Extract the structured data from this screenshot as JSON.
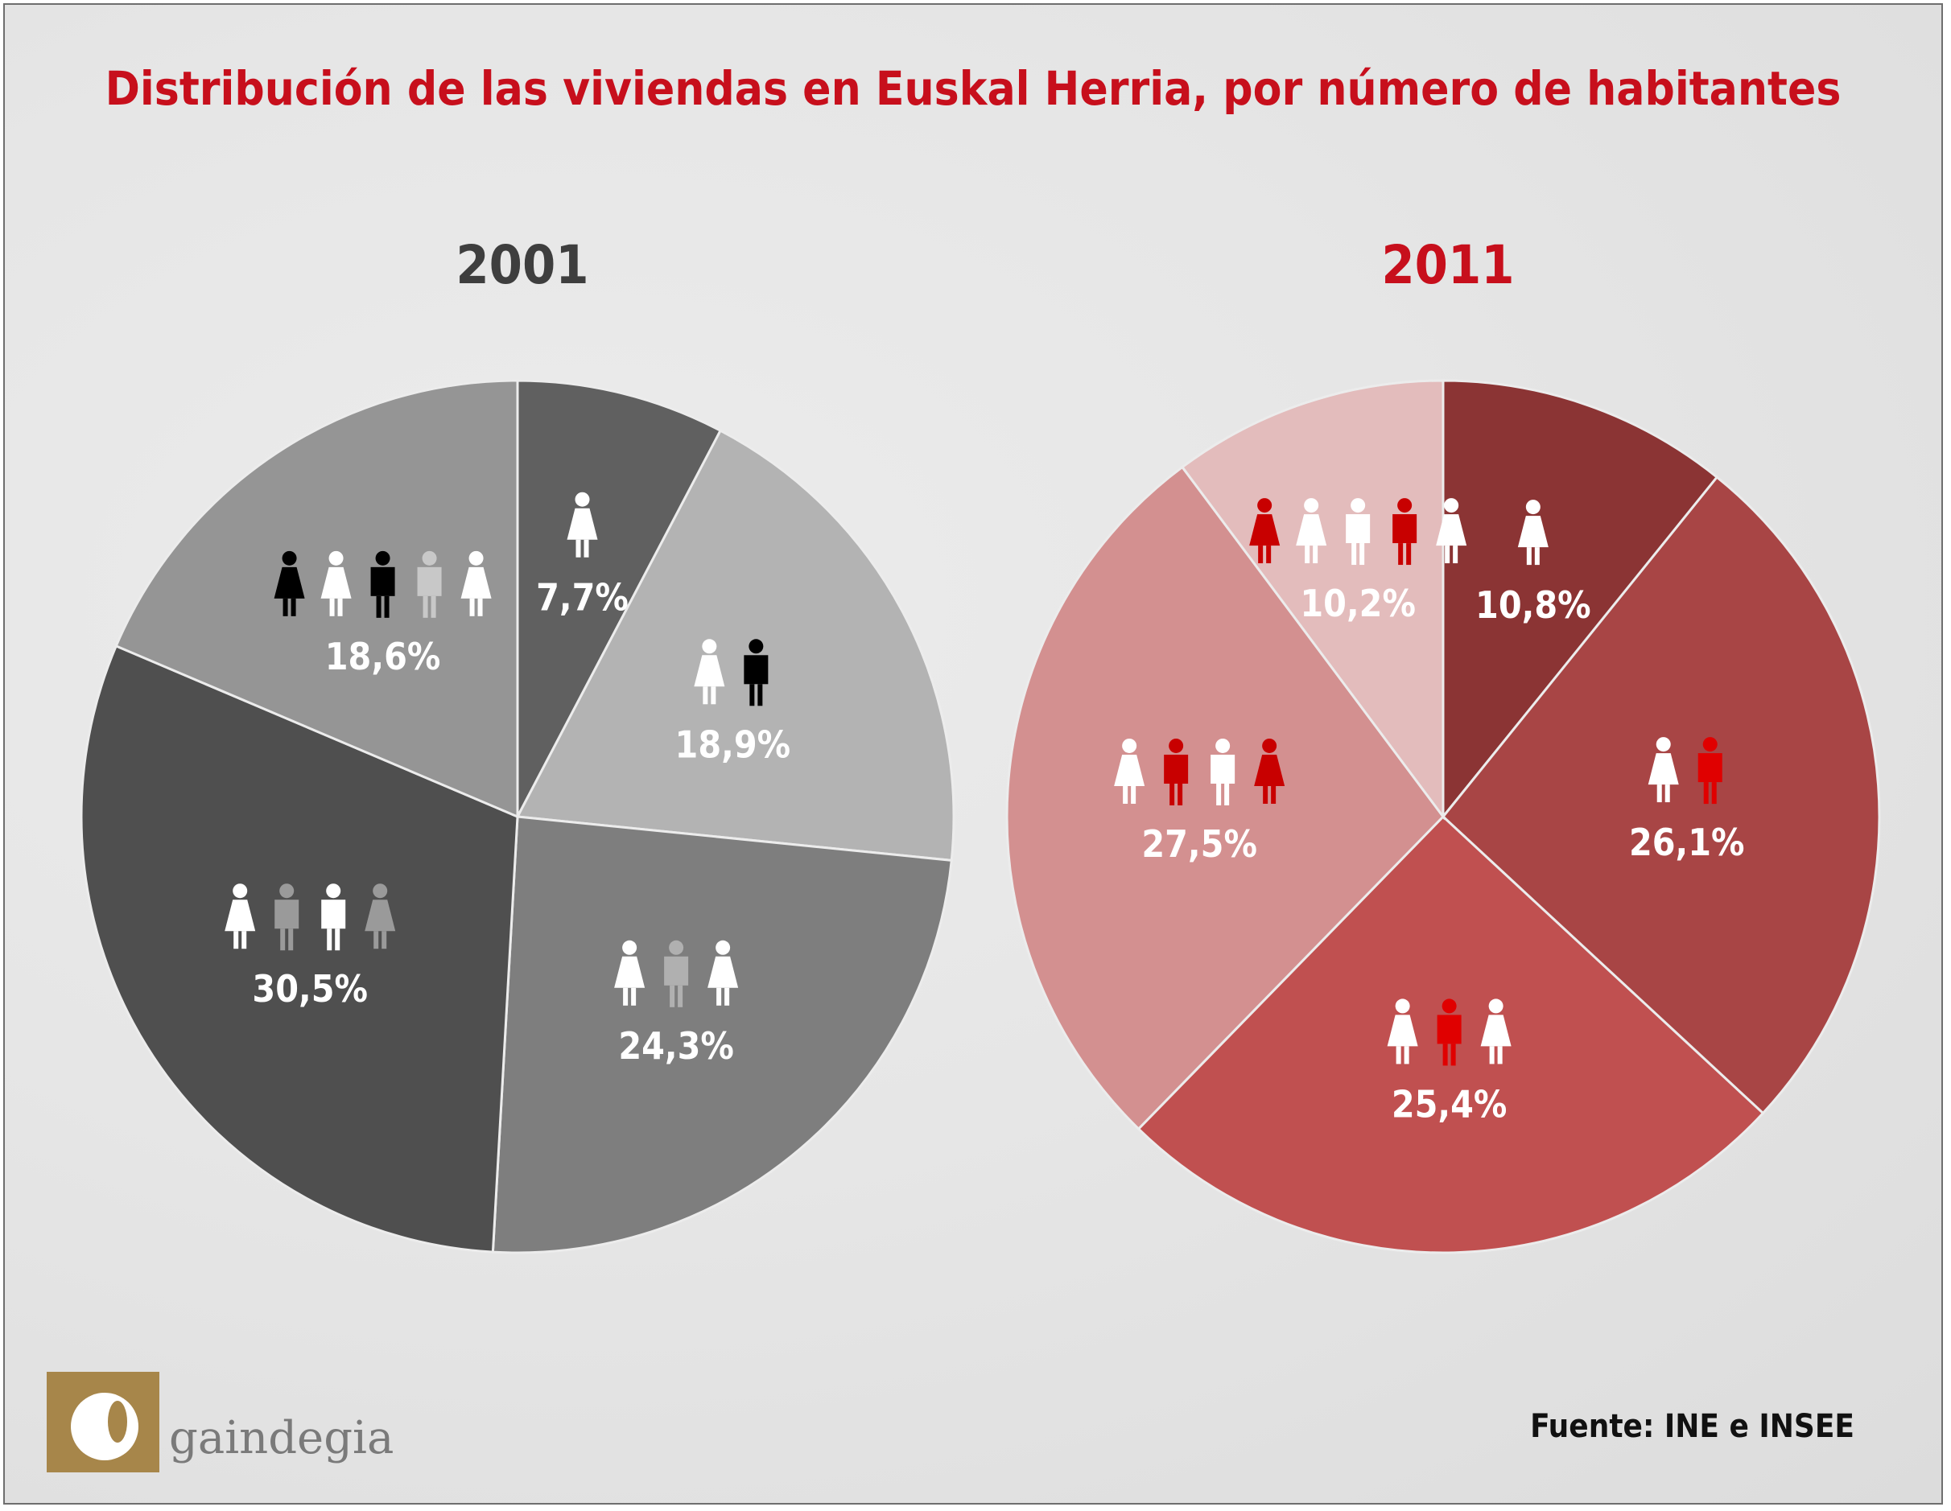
{
  "title": "Distribución de las viviendas en Euskal Herria, por número de habitantes",
  "source": "Fuente: INE e INSEE",
  "logo_text": "gaindegia",
  "chart_data": [
    {
      "type": "pie",
      "title": "2001",
      "slices": [
        {
          "label": "7,7%",
          "value": 7.7,
          "color": "#606060",
          "people": [
            {
              "g": "f",
              "c": "#ffffff"
            }
          ]
        },
        {
          "label": "18,9%",
          "value": 18.9,
          "color": "#b3b3b3",
          "people": [
            {
              "g": "f",
              "c": "#ffffff"
            },
            {
              "g": "m",
              "c": "#000000"
            }
          ]
        },
        {
          "label": "24,3%",
          "value": 24.3,
          "color": "#7e7e7e",
          "people": [
            {
              "g": "f",
              "c": "#ffffff"
            },
            {
              "g": "m",
              "c": "#b0b0b0"
            },
            {
              "g": "f",
              "c": "#ffffff"
            }
          ]
        },
        {
          "label": "30,5%",
          "value": 30.5,
          "color": "#4f4f4f",
          "people": [
            {
              "g": "f",
              "c": "#ffffff"
            },
            {
              "g": "m",
              "c": "#9a9a9a"
            },
            {
              "g": "m",
              "c": "#ffffff"
            },
            {
              "g": "f",
              "c": "#9a9a9a"
            }
          ]
        },
        {
          "label": "18,6%",
          "value": 18.6,
          "color": "#959595",
          "people": [
            {
              "g": "f",
              "c": "#000000"
            },
            {
              "g": "f",
              "c": "#ffffff"
            },
            {
              "g": "m",
              "c": "#000000"
            },
            {
              "g": "m",
              "c": "#c8c8c8"
            },
            {
              "g": "f",
              "c": "#ffffff"
            }
          ]
        }
      ]
    },
    {
      "type": "pie",
      "title": "2011",
      "slices": [
        {
          "label": "10,8%",
          "value": 10.8,
          "color": "#8b3434",
          "people": [
            {
              "g": "f",
              "c": "#ffffff"
            }
          ]
        },
        {
          "label": "26,1%",
          "value": 26.1,
          "color": "#a84545",
          "people": [
            {
              "g": "f",
              "c": "#ffffff"
            },
            {
              "g": "m",
              "c": "#e00000"
            }
          ]
        },
        {
          "label": "25,4%",
          "value": 25.4,
          "color": "#c05050",
          "people": [
            {
              "g": "f",
              "c": "#ffffff"
            },
            {
              "g": "m",
              "c": "#e00000"
            },
            {
              "g": "f",
              "c": "#ffffff"
            }
          ]
        },
        {
          "label": "27,5%",
          "value": 27.5,
          "color": "#d39090",
          "people": [
            {
              "g": "f",
              "c": "#ffffff"
            },
            {
              "g": "m",
              "c": "#c80000"
            },
            {
              "g": "m",
              "c": "#ffffff"
            },
            {
              "g": "f",
              "c": "#c80000"
            }
          ]
        },
        {
          "label": "10,2%",
          "value": 10.2,
          "color": "#e3bcbc",
          "people": [
            {
              "g": "f",
              "c": "#c80000"
            },
            {
              "g": "f",
              "c": "#ffffff"
            },
            {
              "g": "m",
              "c": "#ffffff"
            },
            {
              "g": "m",
              "c": "#c80000"
            },
            {
              "g": "f",
              "c": "#ffffff"
            }
          ]
        }
      ]
    }
  ]
}
